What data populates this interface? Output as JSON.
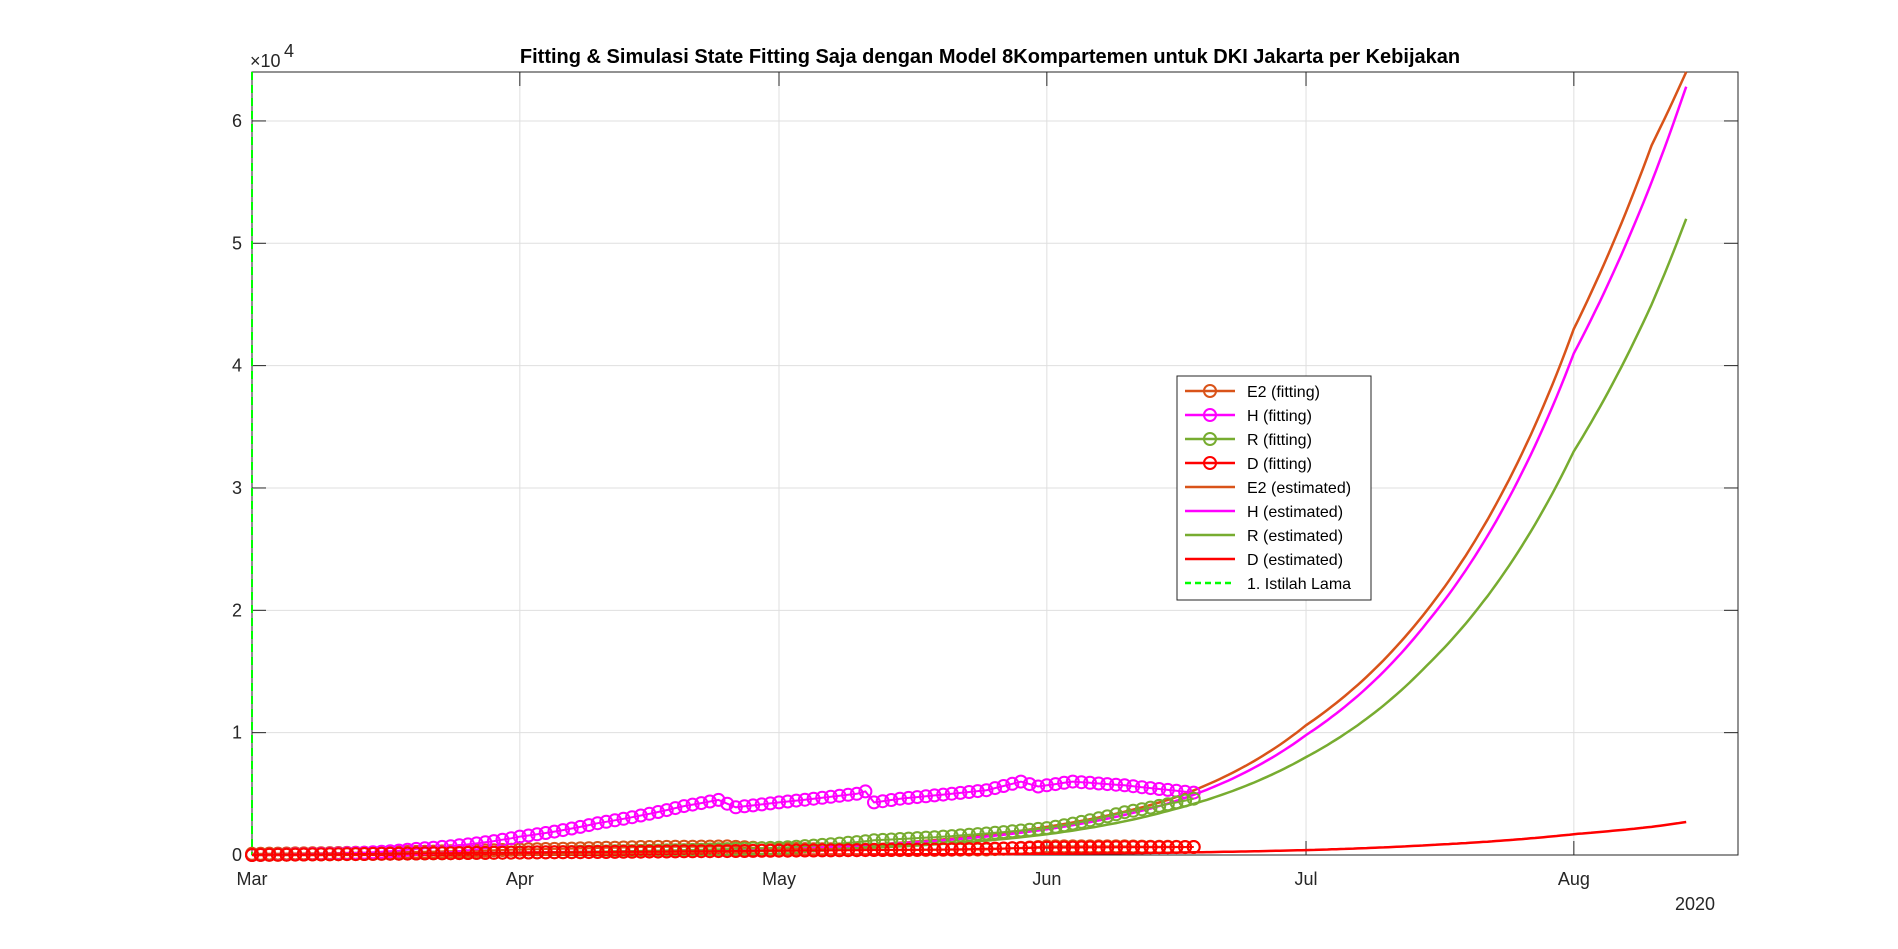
{
  "chart_data": {
    "type": "line",
    "title": "Fitting & Simulasi State Fitting Saja dengan Model 8Kompartemen untuk DKI Jakarta per Kebijakan",
    "xlabel": "",
    "ylabel": "",
    "y_exponent_label": "×10",
    "y_exponent_power": "4",
    "x_secondary_label": "2020",
    "x_axis_type": "date",
    "xlim": [
      "2020-03-01",
      "2020-08-20"
    ],
    "ylim": [
      0,
      64000
    ],
    "x_ticks": [
      {
        "date": "2020-03-01",
        "label": "Mar"
      },
      {
        "date": "2020-04-01",
        "label": "Apr"
      },
      {
        "date": "2020-05-01",
        "label": "May"
      },
      {
        "date": "2020-06-01",
        "label": "Jun"
      },
      {
        "date": "2020-07-01",
        "label": "Jul"
      },
      {
        "date": "2020-08-01",
        "label": "Aug"
      }
    ],
    "y_ticks": [
      {
        "value": 0,
        "label": "0"
      },
      {
        "value": 10000,
        "label": "1"
      },
      {
        "value": 20000,
        "label": "2"
      },
      {
        "value": 30000,
        "label": "3"
      },
      {
        "value": 40000,
        "label": "4"
      },
      {
        "value": 50000,
        "label": "5"
      },
      {
        "value": 60000,
        "label": "6"
      }
    ],
    "grid": true,
    "legend_position": "center-right",
    "series": [
      {
        "name": "E2 (fitting)",
        "color": "#D95319",
        "style": "line-marker",
        "points": [
          [
            "2020-03-01",
            100
          ],
          [
            "2020-03-15",
            200
          ],
          [
            "2020-04-01",
            450
          ],
          [
            "2020-04-15",
            650
          ],
          [
            "2020-04-25",
            700
          ],
          [
            "2020-05-01",
            500
          ],
          [
            "2020-05-10",
            450
          ],
          [
            "2020-05-15",
            400
          ],
          [
            "2020-05-25",
            450
          ],
          [
            "2020-06-01",
            700
          ],
          [
            "2020-06-10",
            700
          ],
          [
            "2020-06-18",
            650
          ]
        ]
      },
      {
        "name": "H (fitting)",
        "color": "#FF00FF",
        "style": "line-marker",
        "points": [
          [
            "2020-03-01",
            0
          ],
          [
            "2020-03-10",
            100
          ],
          [
            "2020-03-20",
            500
          ],
          [
            "2020-04-01",
            1500
          ],
          [
            "2020-04-10",
            2600
          ],
          [
            "2020-04-20",
            4000
          ],
          [
            "2020-04-24",
            4500
          ],
          [
            "2020-04-26",
            3900
          ],
          [
            "2020-05-01",
            4300
          ],
          [
            "2020-05-10",
            5000
          ],
          [
            "2020-05-11",
            5200
          ],
          [
            "2020-05-12",
            4300
          ],
          [
            "2020-05-15",
            4600
          ],
          [
            "2020-05-25",
            5300
          ],
          [
            "2020-05-29",
            6000
          ],
          [
            "2020-05-31",
            5600
          ],
          [
            "2020-06-04",
            6000
          ],
          [
            "2020-06-10",
            5700
          ],
          [
            "2020-06-18",
            5100
          ]
        ]
      },
      {
        "name": "R (fitting)",
        "color": "#77AC30",
        "style": "line-marker",
        "points": [
          [
            "2020-03-01",
            0
          ],
          [
            "2020-04-01",
            200
          ],
          [
            "2020-05-01",
            600
          ],
          [
            "2020-05-12",
            1200
          ],
          [
            "2020-05-20",
            1500
          ],
          [
            "2020-06-01",
            2200
          ],
          [
            "2020-06-10",
            3500
          ],
          [
            "2020-06-18",
            4600
          ]
        ]
      },
      {
        "name": "D (fitting)",
        "color": "#FF0000",
        "style": "line-marker",
        "points": [
          [
            "2020-03-01",
            0
          ],
          [
            "2020-04-01",
            200
          ],
          [
            "2020-04-20",
            300
          ],
          [
            "2020-05-01",
            350
          ],
          [
            "2020-05-20",
            450
          ],
          [
            "2020-06-01",
            600
          ],
          [
            "2020-06-18",
            650
          ]
        ]
      },
      {
        "name": "E2 (estimated)",
        "color": "#D95319",
        "style": "line",
        "points": [
          [
            "2020-03-01",
            50
          ],
          [
            "2020-04-01",
            200
          ],
          [
            "2020-05-01",
            500
          ],
          [
            "2020-05-15",
            1000
          ],
          [
            "2020-06-01",
            2300
          ],
          [
            "2020-06-15",
            4500
          ],
          [
            "2020-07-01",
            10600
          ],
          [
            "2020-07-15",
            20000
          ],
          [
            "2020-08-01",
            43000
          ],
          [
            "2020-08-10",
            58000
          ],
          [
            "2020-08-14",
            64000
          ]
        ]
      },
      {
        "name": "H (estimated)",
        "color": "#FF00FF",
        "style": "line",
        "points": [
          [
            "2020-03-01",
            50
          ],
          [
            "2020-04-01",
            200
          ],
          [
            "2020-05-01",
            500
          ],
          [
            "2020-05-15",
            950
          ],
          [
            "2020-06-01",
            2100
          ],
          [
            "2020-06-15",
            4200
          ],
          [
            "2020-07-01",
            9800
          ],
          [
            "2020-07-15",
            19000
          ],
          [
            "2020-08-01",
            41000
          ],
          [
            "2020-08-10",
            55000
          ],
          [
            "2020-08-14",
            62800
          ]
        ]
      },
      {
        "name": "R (estimated)",
        "color": "#77AC30",
        "style": "line",
        "points": [
          [
            "2020-03-01",
            20
          ],
          [
            "2020-04-01",
            100
          ],
          [
            "2020-05-01",
            350
          ],
          [
            "2020-05-15",
            700
          ],
          [
            "2020-06-01",
            1700
          ],
          [
            "2020-06-15",
            3600
          ],
          [
            "2020-07-01",
            8000
          ],
          [
            "2020-07-15",
            15500
          ],
          [
            "2020-08-01",
            33000
          ],
          [
            "2020-08-10",
            45000
          ],
          [
            "2020-08-14",
            52000
          ]
        ]
      },
      {
        "name": "D (estimated)",
        "color": "#FF0000",
        "style": "line",
        "points": [
          [
            "2020-03-01",
            0
          ],
          [
            "2020-05-01",
            30
          ],
          [
            "2020-06-01",
            100
          ],
          [
            "2020-07-01",
            400
          ],
          [
            "2020-07-15",
            800
          ],
          [
            "2020-08-01",
            1700
          ],
          [
            "2020-08-10",
            2300
          ],
          [
            "2020-08-14",
            2700
          ]
        ]
      },
      {
        "name": "1. Istilah Lama",
        "color": "#00FF00",
        "style": "dashed-vertical",
        "date": "2020-03-01"
      }
    ]
  }
}
